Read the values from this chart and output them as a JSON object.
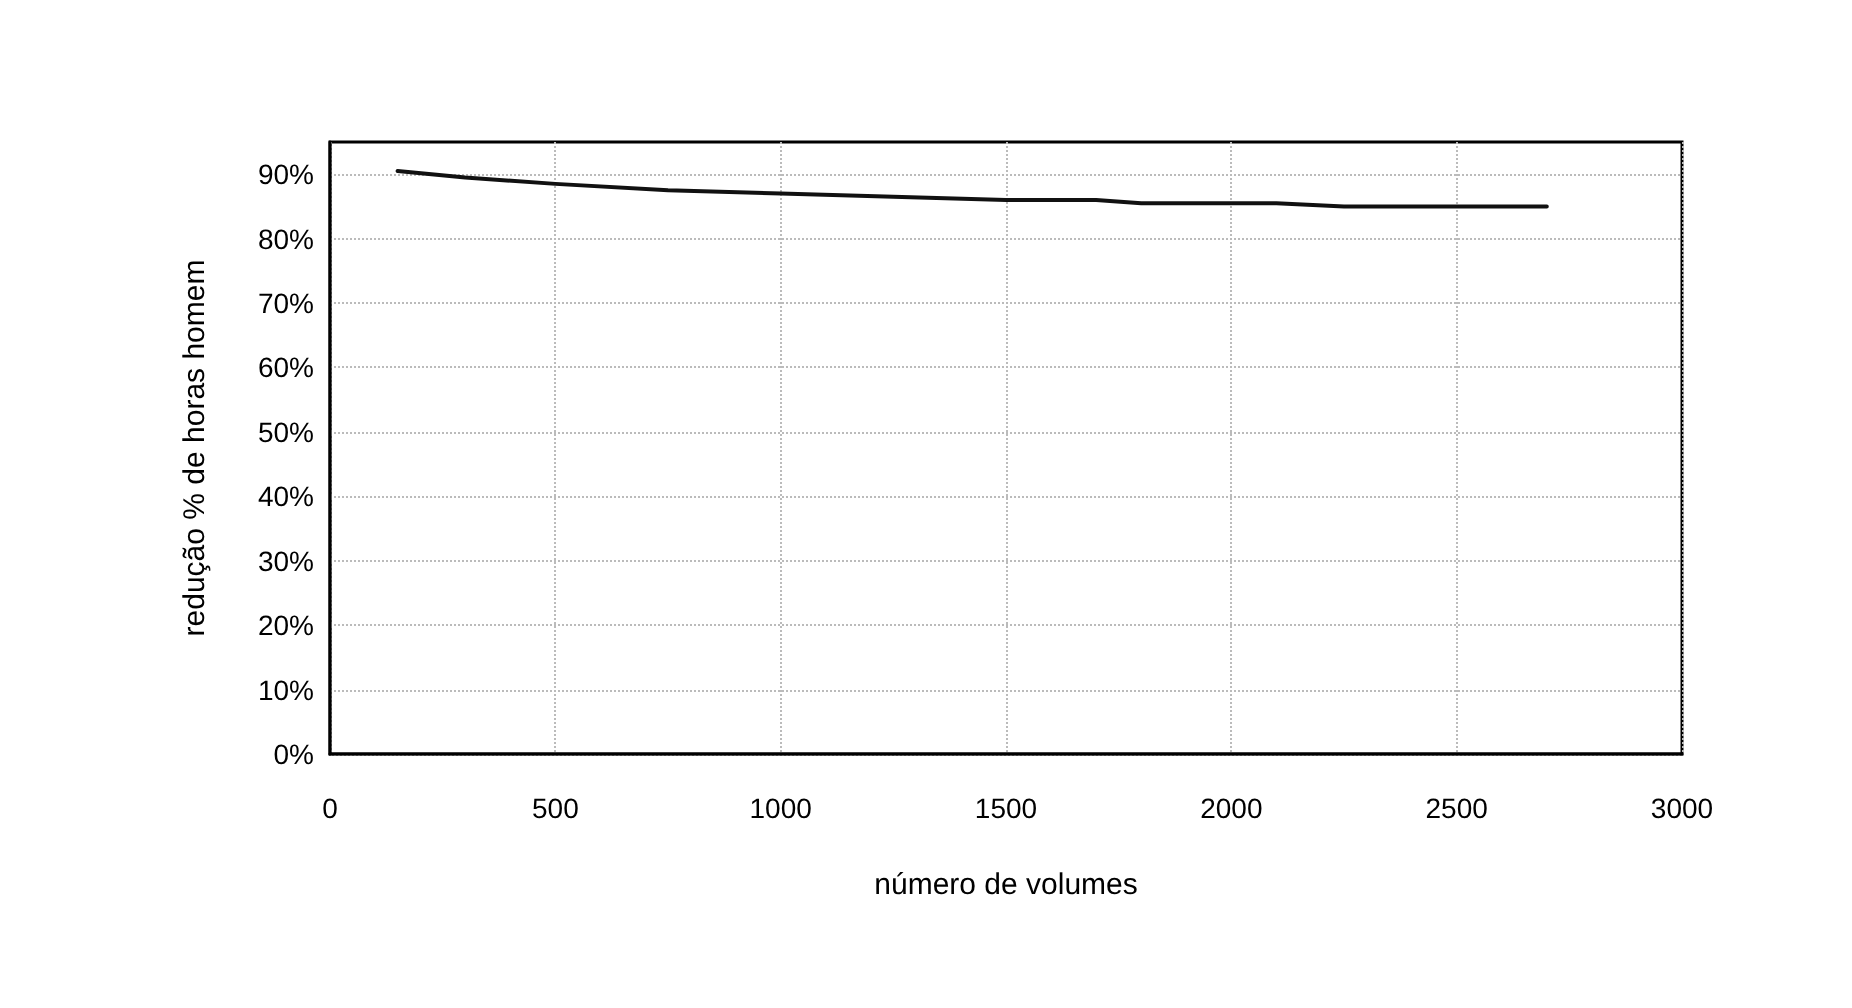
{
  "chart_data": {
    "type": "line",
    "xlabel": "número de volumes",
    "ylabel": "redução % de horas homem",
    "x": [
      150,
      300,
      500,
      750,
      1000,
      1250,
      1500,
      1700,
      1800,
      2100,
      2250,
      2700
    ],
    "series": [
      {
        "color": "#111111",
        "values": [
          90.5,
          89.5,
          88.5,
          87.5,
          87,
          86.5,
          86,
          86,
          85.5,
          85.5,
          85,
          85
        ]
      }
    ],
    "xlim": [
      0,
      3000
    ],
    "xticks": [
      0,
      500,
      1000,
      1500,
      2000,
      2500,
      3000
    ],
    "ylim": [
      0,
      95
    ],
    "yticks": [
      {
        "value": 0,
        "label": "0%"
      },
      {
        "value": 10,
        "label": "10%"
      },
      {
        "value": 20,
        "label": "20%"
      },
      {
        "value": 30,
        "label": "30%"
      },
      {
        "value": 40,
        "label": "40%"
      },
      {
        "value": 50,
        "label": "50%"
      },
      {
        "value": 60,
        "label": "60%"
      },
      {
        "value": 70,
        "label": "70%"
      },
      {
        "value": 80,
        "label": "80%"
      },
      {
        "value": 90,
        "label": "90%"
      }
    ],
    "grid": true,
    "marker": "none",
    "line_style": "solid"
  }
}
